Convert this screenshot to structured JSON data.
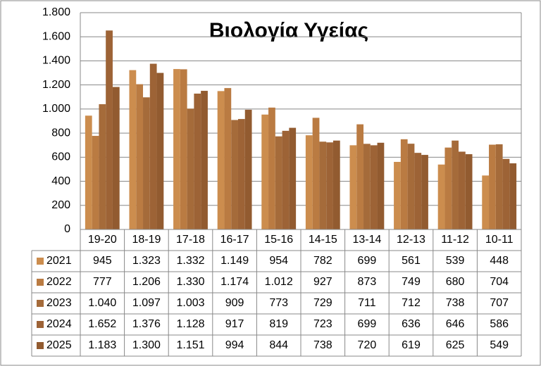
{
  "chart_data": {
    "type": "bar",
    "title": "Βιολογία Υγείας",
    "categories": [
      "19-20",
      "18-19",
      "17-18",
      "16-17",
      "15-16",
      "14-15",
      "13-14",
      "12-13",
      "11-12",
      "10-11"
    ],
    "series": [
      {
        "name": "2021",
        "color": "#cc8d4e",
        "values": [
          945,
          1323,
          1332,
          1149,
          954,
          782,
          699,
          561,
          539,
          448
        ],
        "value_labels": [
          "945",
          "1.323",
          "1.332",
          "1.149",
          "954",
          "782",
          "699",
          "561",
          "539",
          "448"
        ]
      },
      {
        "name": "2022",
        "color": "#ba7b42",
        "values": [
          777,
          1206,
          1330,
          1174,
          1012,
          927,
          873,
          749,
          680,
          704
        ],
        "value_labels": [
          "777",
          "1.206",
          "1.330",
          "1.174",
          "1.012",
          "927",
          "873",
          "749",
          "680",
          "704"
        ]
      },
      {
        "name": "2023",
        "color": "#a56b3a",
        "values": [
          1040,
          1097,
          1003,
          909,
          773,
          729,
          711,
          712,
          738,
          707
        ],
        "value_labels": [
          "1.040",
          "1.097",
          "1.003",
          "909",
          "773",
          "729",
          "711",
          "712",
          "738",
          "707"
        ]
      },
      {
        "name": "2024",
        "color": "#9d6336",
        "values": [
          1652,
          1376,
          1128,
          917,
          819,
          723,
          699,
          636,
          646,
          586
        ],
        "value_labels": [
          "1.652",
          "1.376",
          "1.128",
          "917",
          "819",
          "723",
          "699",
          "636",
          "646",
          "586"
        ]
      },
      {
        "name": "2025",
        "color": "#925b30",
        "values": [
          1183,
          1300,
          1151,
          994,
          844,
          738,
          720,
          619,
          625,
          549
        ],
        "value_labels": [
          "1.183",
          "1.300",
          "1.151",
          "994",
          "844",
          "738",
          "720",
          "619",
          "625",
          "549"
        ]
      }
    ],
    "ylim": [
      0,
      1800
    ],
    "yticks": [
      0,
      200,
      400,
      600,
      800,
      {
        "value": 1000,
        "label": "1.000"
      },
      {
        "value": 1200,
        "label": "1.200"
      },
      {
        "value": 1400,
        "label": "1.400"
      },
      {
        "value": 1600,
        "label": "1.600"
      },
      {
        "value": 1800,
        "label": "1.800"
      }
    ],
    "grid": true
  }
}
